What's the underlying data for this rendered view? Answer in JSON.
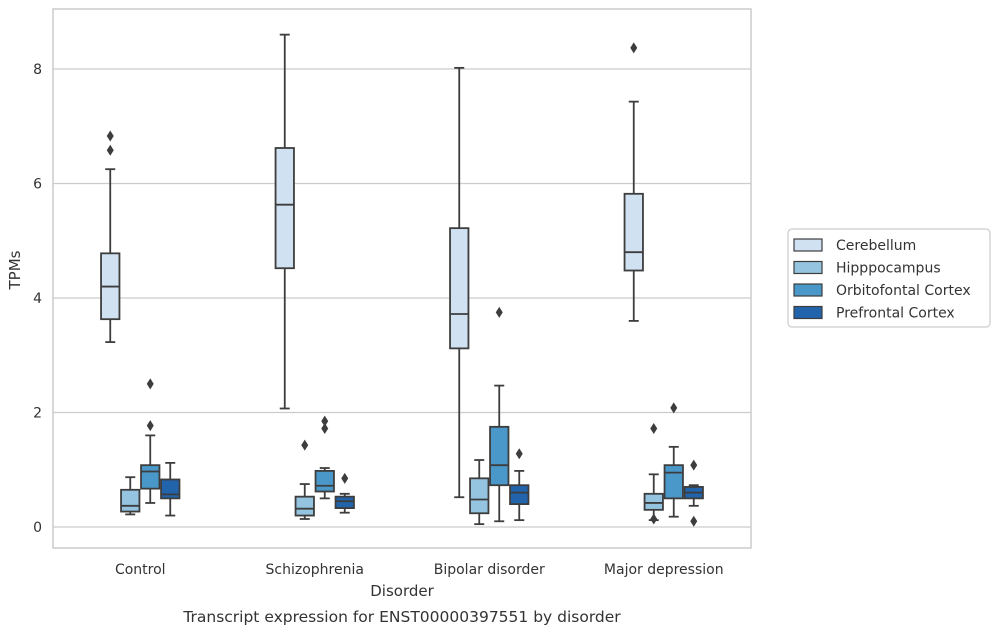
{
  "chart_data": {
    "type": "box",
    "title": "Transcript expression for ENST00000397551 by disorder",
    "xlabel": "Disorder",
    "ylabel": "TPMs",
    "ylim": [
      -0.35,
      9.05
    ],
    "yticks": [
      0,
      2,
      4,
      6,
      8
    ],
    "grid": "horizontal",
    "legend_position": "right",
    "categories": [
      "Control",
      "Schizophrenia",
      "Bipolar disorder",
      "Major depression"
    ],
    "series": [
      {
        "name": "Cerebellum",
        "color": "#d0e1f2",
        "boxes": [
          {
            "whislo": 3.23,
            "q1": 3.63,
            "med": 4.2,
            "q3": 4.78,
            "whishi": 6.25,
            "fliers": [
              6.58,
              6.83
            ]
          },
          {
            "whislo": 2.07,
            "q1": 4.52,
            "med": 5.63,
            "q3": 6.62,
            "whishi": 8.6,
            "fliers": []
          },
          {
            "whislo": 0.52,
            "q1": 3.12,
            "med": 3.72,
            "q3": 5.22,
            "whishi": 8.02,
            "fliers": []
          },
          {
            "whislo": 3.6,
            "q1": 4.48,
            "med": 4.8,
            "q3": 5.82,
            "whishi": 7.43,
            "fliers": [
              8.37
            ]
          }
        ]
      },
      {
        "name": "Hipppocampus",
        "color": "#94c4df",
        "boxes": [
          {
            "whislo": 0.22,
            "q1": 0.27,
            "med": 0.37,
            "q3": 0.65,
            "whishi": 0.87,
            "fliers": []
          },
          {
            "whislo": 0.14,
            "q1": 0.2,
            "med": 0.32,
            "q3": 0.53,
            "whishi": 0.75,
            "fliers": [
              1.43
            ]
          },
          {
            "whislo": 0.05,
            "q1": 0.24,
            "med": 0.48,
            "q3": 0.85,
            "whishi": 1.17,
            "fliers": []
          },
          {
            "whislo": 0.12,
            "q1": 0.3,
            "med": 0.42,
            "q3": 0.58,
            "whishi": 0.92,
            "fliers": [
              0.14,
              1.72
            ]
          }
        ]
      },
      {
        "name": "Orbitofontal Cortex",
        "color": "#4a98c9",
        "boxes": [
          {
            "whislo": 0.42,
            "q1": 0.67,
            "med": 0.97,
            "q3": 1.08,
            "whishi": 1.6,
            "fliers": [
              1.77,
              2.5
            ]
          },
          {
            "whislo": 0.5,
            "q1": 0.62,
            "med": 0.72,
            "q3": 0.98,
            "whishi": 1.03,
            "fliers": [
              1.72,
              1.85
            ]
          },
          {
            "whislo": 0.1,
            "q1": 0.73,
            "med": 1.08,
            "q3": 1.75,
            "whishi": 2.47,
            "fliers": [
              3.75
            ]
          },
          {
            "whislo": 0.18,
            "q1": 0.5,
            "med": 0.95,
            "q3": 1.08,
            "whishi": 1.4,
            "fliers": [
              2.08
            ]
          }
        ]
      },
      {
        "name": "Prefrontal Cortex",
        "color": "#2164ab",
        "boxes": [
          {
            "whislo": 0.2,
            "q1": 0.5,
            "med": 0.57,
            "q3": 0.83,
            "whishi": 1.12,
            "fliers": []
          },
          {
            "whislo": 0.25,
            "q1": 0.33,
            "med": 0.45,
            "q3": 0.53,
            "whishi": 0.58,
            "fliers": [
              0.85
            ]
          },
          {
            "whislo": 0.12,
            "q1": 0.4,
            "med": 0.6,
            "q3": 0.73,
            "whishi": 0.98,
            "fliers": [
              1.28
            ]
          },
          {
            "whislo": 0.37,
            "q1": 0.5,
            "med": 0.6,
            "q3": 0.7,
            "whishi": 0.73,
            "fliers": [
              0.1,
              1.08
            ]
          }
        ]
      }
    ]
  }
}
